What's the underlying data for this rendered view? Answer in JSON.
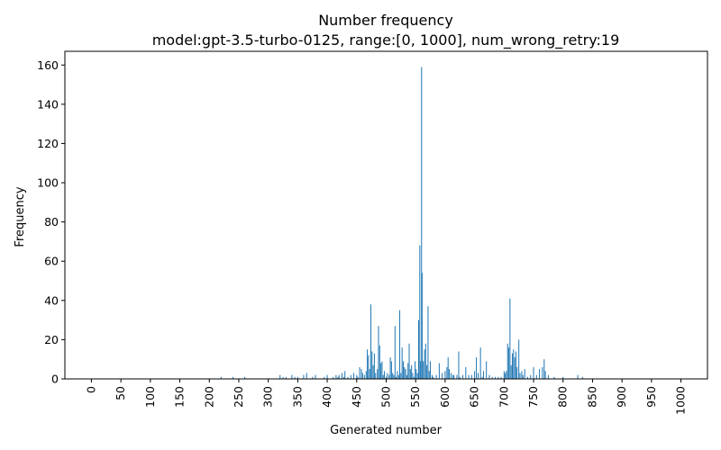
{
  "chart_data": {
    "type": "bar",
    "title": "Number frequency",
    "subtitle": "model:gpt-3.5-turbo-0125, range:[0, 1000], num_wrong_retry:19",
    "xlabel": "Generated number",
    "ylabel": "Frequency",
    "xlim": [
      -45,
      1045
    ],
    "ylim": [
      0,
      167
    ],
    "x_ticks": [
      0,
      50,
      100,
      150,
      200,
      250,
      300,
      350,
      400,
      450,
      500,
      550,
      600,
      650,
      700,
      750,
      800,
      850,
      900,
      950,
      1000
    ],
    "y_ticks": [
      0,
      20,
      40,
      60,
      80,
      100,
      120,
      140,
      160
    ],
    "grid": false,
    "bar_color": "#1f77b4",
    "points": [
      [
        220,
        1
      ],
      [
        240,
        1
      ],
      [
        260,
        1
      ],
      [
        320,
        2
      ],
      [
        325,
        1
      ],
      [
        330,
        1
      ],
      [
        340,
        2
      ],
      [
        345,
        1
      ],
      [
        350,
        1
      ],
      [
        360,
        2
      ],
      [
        365,
        3
      ],
      [
        375,
        1
      ],
      [
        380,
        2
      ],
      [
        395,
        1
      ],
      [
        400,
        2
      ],
      [
        410,
        1
      ],
      [
        415,
        2
      ],
      [
        418,
        1
      ],
      [
        420,
        2
      ],
      [
        425,
        3
      ],
      [
        428,
        1
      ],
      [
        430,
        4
      ],
      [
        435,
        1
      ],
      [
        440,
        2
      ],
      [
        445,
        3
      ],
      [
        450,
        2
      ],
      [
        452,
        1
      ],
      [
        455,
        6
      ],
      [
        458,
        5
      ],
      [
        460,
        3
      ],
      [
        463,
        2
      ],
      [
        466,
        4
      ],
      [
        468,
        15
      ],
      [
        470,
        12
      ],
      [
        472,
        5
      ],
      [
        474,
        38
      ],
      [
        476,
        14
      ],
      [
        478,
        7
      ],
      [
        480,
        13
      ],
      [
        482,
        3
      ],
      [
        485,
        5
      ],
      [
        487,
        27
      ],
      [
        489,
        17
      ],
      [
        491,
        8
      ],
      [
        493,
        9
      ],
      [
        495,
        2
      ],
      [
        497,
        4
      ],
      [
        500,
        1
      ],
      [
        502,
        3
      ],
      [
        505,
        2
      ],
      [
        507,
        11
      ],
      [
        509,
        9
      ],
      [
        511,
        3
      ],
      [
        513,
        2
      ],
      [
        515,
        27
      ],
      [
        517,
        1
      ],
      [
        519,
        4
      ],
      [
        521,
        2
      ],
      [
        523,
        35
      ],
      [
        525,
        3
      ],
      [
        527,
        16
      ],
      [
        529,
        9
      ],
      [
        531,
        6
      ],
      [
        533,
        5
      ],
      [
        535,
        2
      ],
      [
        537,
        8
      ],
      [
        539,
        18
      ],
      [
        541,
        5
      ],
      [
        543,
        7
      ],
      [
        545,
        3
      ],
      [
        547,
        1
      ],
      [
        549,
        9
      ],
      [
        551,
        5
      ],
      [
        553,
        3
      ],
      [
        555,
        30
      ],
      [
        557,
        68
      ],
      [
        558,
        9
      ],
      [
        560,
        159
      ],
      [
        561,
        54
      ],
      [
        563,
        9
      ],
      [
        565,
        15
      ],
      [
        567,
        18
      ],
      [
        569,
        7
      ],
      [
        571,
        37
      ],
      [
        573,
        4
      ],
      [
        575,
        9
      ],
      [
        578,
        2
      ],
      [
        580,
        1
      ],
      [
        585,
        2
      ],
      [
        590,
        8
      ],
      [
        595,
        3
      ],
      [
        600,
        4
      ],
      [
        603,
        6
      ],
      [
        605,
        11
      ],
      [
        607,
        5
      ],
      [
        610,
        3
      ],
      [
        613,
        2
      ],
      [
        615,
        2
      ],
      [
        620,
        2
      ],
      [
        623,
        14
      ],
      [
        625,
        1
      ],
      [
        630,
        2
      ],
      [
        635,
        6
      ],
      [
        640,
        2
      ],
      [
        645,
        2
      ],
      [
        650,
        4
      ],
      [
        653,
        11
      ],
      [
        656,
        3
      ],
      [
        660,
        16
      ],
      [
        663,
        1
      ],
      [
        665,
        4
      ],
      [
        670,
        9
      ],
      [
        675,
        2
      ],
      [
        680,
        1
      ],
      [
        685,
        1
      ],
      [
        690,
        1
      ],
      [
        695,
        1
      ],
      [
        700,
        4
      ],
      [
        702,
        3
      ],
      [
        704,
        4
      ],
      [
        706,
        18
      ],
      [
        708,
        16
      ],
      [
        710,
        41
      ],
      [
        712,
        7
      ],
      [
        714,
        13
      ],
      [
        716,
        15
      ],
      [
        718,
        11
      ],
      [
        720,
        14
      ],
      [
        722,
        6
      ],
      [
        725,
        20
      ],
      [
        727,
        3
      ],
      [
        730,
        4
      ],
      [
        732,
        2
      ],
      [
        735,
        5
      ],
      [
        740,
        1
      ],
      [
        745,
        2
      ],
      [
        750,
        6
      ],
      [
        755,
        2
      ],
      [
        760,
        5
      ],
      [
        765,
        6
      ],
      [
        768,
        10
      ],
      [
        770,
        4
      ],
      [
        775,
        2
      ],
      [
        785,
        1
      ],
      [
        800,
        1
      ],
      [
        825,
        2
      ],
      [
        833,
        1
      ]
    ]
  }
}
